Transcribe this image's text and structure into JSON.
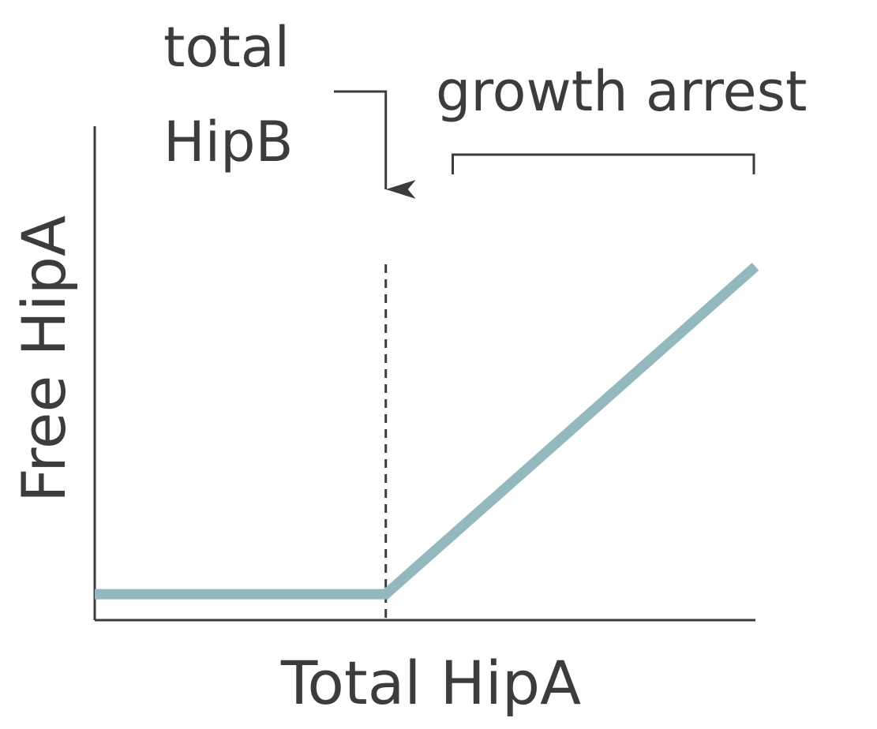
{
  "chart_data": {
    "type": "line",
    "xlabel": "Total HipA",
    "ylabel": "Free HipA",
    "annotations": {
      "threshold_line1": "total",
      "threshold_line2": "HipB",
      "growth_region": "growth arrest"
    },
    "series": [
      {
        "x": [
          0,
          1,
          2.27
        ],
        "y": [
          0,
          0,
          1.26
        ]
      }
    ],
    "threshold_x": 1,
    "growth_region_x": [
      1.23,
      2.27
    ],
    "xlim": [
      0,
      2.27
    ],
    "ylim": [
      -0.1,
      1.8
    ],
    "colors": {
      "series": "#93b8bd",
      "axis": "#3c3c3c",
      "text": "#3c3c3c"
    }
  }
}
